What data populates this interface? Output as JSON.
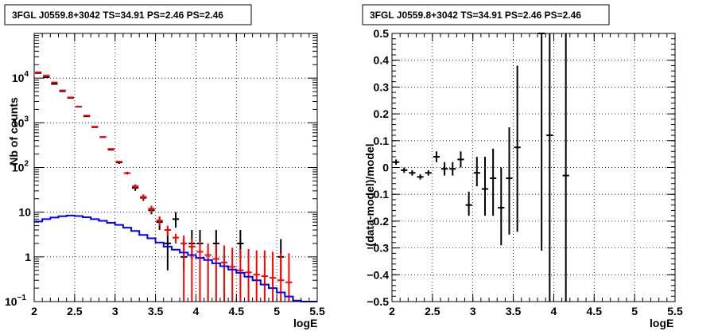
{
  "chart_data": [
    {
      "type": "histogram",
      "title": "3FGL J0559.8+3042 TS=34.91 PS=2.46 PS=2.46",
      "xlabel": "logE",
      "ylabel": "Nb of counts",
      "xlim": [
        2,
        5.5
      ],
      "ylim": [
        0.1,
        100000
      ],
      "yscale": "log",
      "grid": true,
      "x_ticks": [
        "2",
        "2.5",
        "3",
        "3.5",
        "4",
        "4.5",
        "5",
        "5.5"
      ],
      "y_ticks": [
        {
          "v": 0.1,
          "base": "10",
          "exp": "−1"
        },
        {
          "v": 1,
          "base": "1",
          "exp": ""
        },
        {
          "v": 10,
          "base": "10",
          "exp": ""
        },
        {
          "v": 100,
          "base": "10",
          "exp": "2"
        },
        {
          "v": 1000,
          "base": "10",
          "exp": "3"
        },
        {
          "v": 10000,
          "base": "10",
          "exp": "4"
        }
      ],
      "series": [
        {
          "color": "#000000",
          "style": "errorbar",
          "x": [
            2.05,
            2.15,
            2.25,
            2.35,
            2.45,
            2.55,
            2.65,
            2.75,
            2.85,
            2.95,
            3.05,
            3.15,
            3.25,
            3.35,
            3.45,
            3.55,
            3.65,
            3.75,
            3.85,
            3.95,
            4.05,
            4.25,
            4.55,
            5.05
          ],
          "y": [
            13000,
            10500,
            7400,
            5100,
            3600,
            2300,
            1400,
            800,
            480,
            250,
            130,
            75,
            35,
            21,
            11,
            6,
            2,
            7,
            1,
            2,
            2,
            2,
            2,
            1
          ],
          "ylow": [
            12800,
            10300,
            7300,
            5000,
            3550,
            2250,
            1370,
            780,
            470,
            240,
            120,
            70,
            30,
            18,
            9,
            4,
            0.5,
            4.5,
            0.5,
            0.9,
            0.9,
            0.9,
            0.9,
            0.3
          ],
          "yhigh": [
            13200,
            10700,
            7500,
            5200,
            3650,
            2350,
            1430,
            820,
            490,
            260,
            140,
            80,
            40,
            24,
            13,
            8,
            4.5,
            10,
            2.5,
            4,
            4,
            4,
            4,
            2.5
          ]
        },
        {
          "color": "#ff0000",
          "style": "errorbar",
          "x": [
            2.05,
            2.15,
            2.25,
            2.35,
            2.45,
            2.55,
            2.65,
            2.75,
            2.85,
            2.95,
            3.05,
            3.15,
            3.25,
            3.35,
            3.45,
            3.55,
            3.65,
            3.75,
            3.85,
            3.95,
            4.05,
            4.15,
            4.25,
            4.35,
            4.45,
            4.55,
            4.65,
            4.75,
            4.85,
            4.95,
            5.05,
            5.15
          ],
          "y": [
            13500,
            11500,
            8000,
            5300,
            3700,
            2300,
            1450,
            820,
            480,
            260,
            135,
            75,
            38,
            22,
            12,
            6.5,
            4,
            2.7,
            2,
            1.7,
            1.3,
            1.1,
            0.9,
            0.75,
            0.6,
            0.5,
            0.45,
            0.4,
            0.37,
            0.34,
            0.3,
            0.27
          ],
          "ylow": [
            13400,
            11400,
            7900,
            5250,
            3650,
            2270,
            1430,
            810,
            470,
            255,
            130,
            72,
            34,
            19,
            10,
            5,
            3,
            2,
            0.1,
            0.1,
            0.1,
            0.1,
            0.1,
            0.1,
            0.1,
            0.1,
            0.1,
            0.1,
            0.1,
            0.1,
            0.1,
            0.1
          ],
          "yhigh": [
            13600,
            11600,
            8100,
            5350,
            3750,
            2330,
            1470,
            830,
            490,
            265,
            140,
            78,
            42,
            25,
            14,
            8,
            5,
            3.3,
            3,
            2.5,
            2.2,
            2,
            1.9,
            1.8,
            1.6,
            1.5,
            1.5,
            1.4,
            1.4,
            1.3,
            1.2,
            1.2
          ]
        },
        {
          "color": "#0000ff",
          "style": "step",
          "edges": [
            2.0,
            2.1,
            2.2,
            2.3,
            2.4,
            2.5,
            2.6,
            2.7,
            2.8,
            2.9,
            3.0,
            3.1,
            3.2,
            3.3,
            3.4,
            3.5,
            3.6,
            3.7,
            3.8,
            3.9,
            4.0,
            4.1,
            4.2,
            4.3,
            4.4,
            4.5,
            4.6,
            4.7,
            4.8,
            4.9,
            5.0,
            5.1,
            5.2,
            5.3,
            5.4,
            5.5
          ],
          "values": [
            6.2,
            7.0,
            7.6,
            8.1,
            8.4,
            8.2,
            7.7,
            7.0,
            6.4,
            5.8,
            5.2,
            4.5,
            3.8,
            3.1,
            2.6,
            2.1,
            1.7,
            1.45,
            1.25,
            1.1,
            0.95,
            0.85,
            0.72,
            0.62,
            0.52,
            0.44,
            0.36,
            0.3,
            0.24,
            0.2,
            0.16,
            0.13,
            0.105,
            0.1,
            0.1
          ]
        }
      ]
    },
    {
      "type": "errorbar",
      "title": "3FGL J0559.8+3042 TS=34.91 PS=2.46 PS=2.46",
      "xlabel": "logE",
      "ylabel": "(data-model)/model",
      "xlim": [
        2,
        5.5
      ],
      "ylim": [
        -0.5,
        0.5
      ],
      "grid": true,
      "x_ticks": [
        "2",
        "2.5",
        "3",
        "3.5",
        "4",
        "4.5",
        "5",
        "5.5"
      ],
      "y_ticks": [
        "−0.5",
        "−0.4",
        "−0.3",
        "−0.2",
        "−0.1",
        "0",
        "0.1",
        "0.2",
        "0.3",
        "0.4",
        "0.5"
      ],
      "series": [
        {
          "color": "#000000",
          "x": [
            2.05,
            2.15,
            2.25,
            2.35,
            2.45,
            2.55,
            2.65,
            2.75,
            2.85,
            2.95,
            3.05,
            3.15,
            3.25,
            3.35,
            3.45,
            3.55,
            3.85,
            3.95,
            4.15
          ],
          "y": [
            0.02,
            -0.01,
            -0.02,
            -0.035,
            -0.02,
            0.04,
            -0.005,
            -0.005,
            0.03,
            -0.14,
            -0.02,
            -0.08,
            -0.04,
            -0.15,
            -0.04,
            0.075,
            0.5,
            0.12,
            -0.03
          ],
          "ylow": [
            0.01,
            -0.02,
            -0.03,
            -0.045,
            -0.03,
            0.02,
            -0.03,
            -0.03,
            0.0,
            -0.18,
            -0.07,
            -0.18,
            -0.18,
            -0.29,
            -0.25,
            -0.24,
            -0.31,
            -0.5,
            -0.5
          ],
          "yhigh": [
            0.03,
            0.0,
            -0.01,
            -0.025,
            -0.01,
            0.06,
            0.02,
            0.02,
            0.06,
            -0.09,
            0.04,
            0.04,
            0.07,
            0.0,
            0.15,
            0.38,
            0.5,
            0.5,
            0.5
          ]
        }
      ]
    }
  ]
}
